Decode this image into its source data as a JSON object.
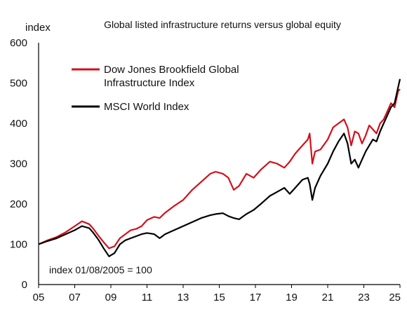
{
  "chart_data": {
    "type": "line",
    "title": "Global listed infrastructure returns versus global equity",
    "ylabel": "index",
    "xlabel": "",
    "note": "index 01/08/2005 = 100",
    "xlim": [
      2005,
      2025
    ],
    "ylim": [
      0,
      600
    ],
    "x_ticks": [
      2005,
      2007,
      2009,
      2011,
      2013,
      2015,
      2017,
      2019,
      2021,
      2023,
      2025
    ],
    "x_tick_labels": [
      "05",
      "07",
      "09",
      "11",
      "13",
      "15",
      "17",
      "19",
      "21",
      "23",
      "25"
    ],
    "y_ticks": [
      0,
      100,
      200,
      300,
      400,
      500,
      600
    ],
    "y_tick_labels": [
      "0",
      "100",
      "200",
      "300",
      "400",
      "500",
      "600"
    ],
    "legend_position": "top-left",
    "legend_lines": {
      "dj_1": "Dow Jones Brookfield Global",
      "dj_2": "Infrastructure Index",
      "msci": "MSCI World Index"
    },
    "series": [
      {
        "name": "Dow Jones Brookfield Global Infrastructure Index",
        "color": "#d3101c",
        "x": [
          2005.0,
          2005.5,
          2006.0,
          2006.5,
          2007.0,
          2007.4,
          2007.8,
          2008.0,
          2008.3,
          2008.6,
          2008.9,
          2009.2,
          2009.5,
          2009.8,
          2010.1,
          2010.4,
          2010.7,
          2011.0,
          2011.4,
          2011.7,
          2012.0,
          2012.5,
          2013.0,
          2013.5,
          2014.0,
          2014.5,
          2014.8,
          2015.2,
          2015.5,
          2015.8,
          2016.1,
          2016.5,
          2016.9,
          2017.3,
          2017.8,
          2018.2,
          2018.6,
          2018.9,
          2019.2,
          2019.6,
          2019.9,
          2020.0,
          2020.15,
          2020.3,
          2020.6,
          2021.0,
          2021.3,
          2021.6,
          2021.9,
          2022.1,
          2022.3,
          2022.5,
          2022.7,
          2022.9,
          2023.1,
          2023.3,
          2023.5,
          2023.7,
          2023.9,
          2024.1,
          2024.3,
          2024.5,
          2024.7,
          2024.9,
          2025.0
        ],
        "y": [
          100,
          110,
          118,
          130,
          145,
          157,
          150,
          140,
          122,
          105,
          90,
          95,
          115,
          125,
          135,
          138,
          145,
          160,
          168,
          165,
          178,
          195,
          210,
          235,
          255,
          275,
          280,
          275,
          265,
          235,
          245,
          275,
          265,
          285,
          305,
          300,
          290,
          305,
          325,
          345,
          360,
          375,
          300,
          330,
          335,
          360,
          390,
          400,
          410,
          390,
          345,
          380,
          375,
          350,
          370,
          395,
          385,
          375,
          400,
          410,
          430,
          450,
          440,
          480,
          485
        ]
      },
      {
        "name": "MSCI World Index",
        "color": "#000000",
        "x": [
          2005.0,
          2005.5,
          2006.0,
          2006.5,
          2007.0,
          2007.4,
          2007.8,
          2008.0,
          2008.3,
          2008.6,
          2008.9,
          2009.2,
          2009.5,
          2009.8,
          2010.1,
          2010.4,
          2010.7,
          2011.0,
          2011.4,
          2011.7,
          2012.0,
          2012.5,
          2013.0,
          2013.5,
          2014.0,
          2014.5,
          2014.8,
          2015.2,
          2015.5,
          2015.8,
          2016.1,
          2016.5,
          2016.9,
          2017.3,
          2017.8,
          2018.2,
          2018.6,
          2018.9,
          2019.2,
          2019.6,
          2019.9,
          2020.0,
          2020.15,
          2020.3,
          2020.6,
          2021.0,
          2021.3,
          2021.6,
          2021.9,
          2022.1,
          2022.3,
          2022.5,
          2022.7,
          2022.9,
          2023.1,
          2023.3,
          2023.5,
          2023.7,
          2023.9,
          2024.1,
          2024.3,
          2024.5,
          2024.7,
          2024.9,
          2025.0
        ],
        "y": [
          100,
          108,
          115,
          125,
          135,
          145,
          140,
          130,
          112,
          90,
          70,
          78,
          100,
          110,
          115,
          120,
          125,
          128,
          125,
          115,
          125,
          135,
          145,
          155,
          165,
          172,
          175,
          177,
          170,
          165,
          162,
          175,
          185,
          200,
          220,
          230,
          240,
          225,
          240,
          260,
          265,
          250,
          210,
          240,
          270,
          300,
          330,
          355,
          375,
          350,
          300,
          310,
          290,
          310,
          330,
          345,
          360,
          355,
          380,
          400,
          420,
          440,
          450,
          490,
          510
        ]
      }
    ]
  }
}
